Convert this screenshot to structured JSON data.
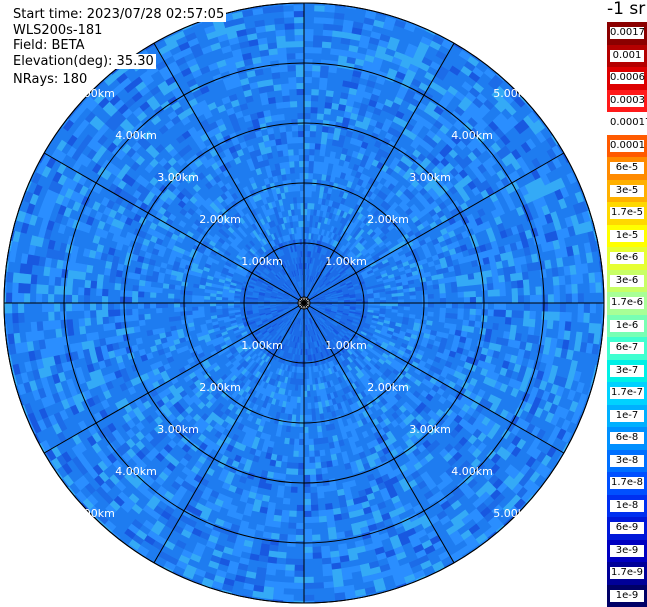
{
  "info": {
    "start_time": "Start time: 2023/07/28 02:57:05",
    "instrument": "WLS200s-181",
    "field": "Field: BETA",
    "elevation": "Elevation(deg): 35.30",
    "nrays": "NRays: 180"
  },
  "colorbar": {
    "unit": "-1 sr",
    "labels": [
      "0.0017",
      "0.001",
      "0.0006",
      "0.0003",
      "0.00017",
      "0.0001",
      "6e-5",
      "3e-5",
      "1.7e-5",
      "1e-5",
      "6e-6",
      "3e-6",
      "1.7e-6",
      "1e-6",
      "6e-7",
      "3e-7",
      "1.7e-7",
      "1e-7",
      "6e-8",
      "3e-8",
      "1.7e-8",
      "1e-8",
      "6e-9",
      "3e-9",
      "1.7e-9",
      "1e-9"
    ],
    "colors": [
      "#8b0000",
      "#b40000",
      "#dd0000",
      "#ff1a1a",
      "#ffffff",
      "#ff5a00",
      "#ff8a00",
      "#ffb000",
      "#ffd800",
      "#ffff00",
      "#e6ff33",
      "#c8ff66",
      "#a8ff96",
      "#78ffb4",
      "#40ffd0",
      "#00f0e6",
      "#00d2ff",
      "#00b0ff",
      "#0090ff",
      "#0070ff",
      "#0050ff",
      "#0030f0",
      "#0018d8",
      "#0000c0",
      "#000098",
      "#000066"
    ]
  },
  "chart_data": {
    "type": "heatmap",
    "projection": "polar PPI",
    "range_rings_km": [
      1,
      2,
      3,
      4,
      5
    ],
    "range_ring_labels": [
      "1.00km",
      "2.00km",
      "3.00km",
      "4.00km",
      "5.00km"
    ],
    "max_range_km": 5.0,
    "spoke_azimuths_deg": [
      0,
      30,
      60,
      90,
      120,
      150,
      180,
      210,
      240,
      270,
      300,
      330
    ],
    "n_rays": 180,
    "field": "BETA",
    "typical_value_range": [
      "1e-8",
      "1.7e-7"
    ],
    "dominant_colors": [
      "#1e7cf0",
      "#2a8eff",
      "#1c6ce8",
      "#34aaf6",
      "#1858e0"
    ]
  }
}
